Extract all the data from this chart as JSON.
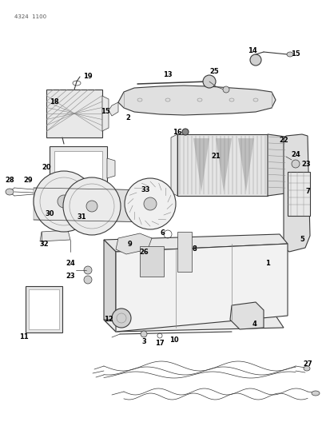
{
  "page_code": "4324 1100",
  "bg_color": "#ffffff",
  "figsize": [
    4.08,
    5.33
  ],
  "dpi": 100,
  "line_color": "#3a3a3a",
  "gray_light": "#c0c0c0",
  "gray_med": "#888888",
  "gray_dark": "#555555",
  "fill_light": "#e8e8e8",
  "fill_med": "#d0d0d0"
}
